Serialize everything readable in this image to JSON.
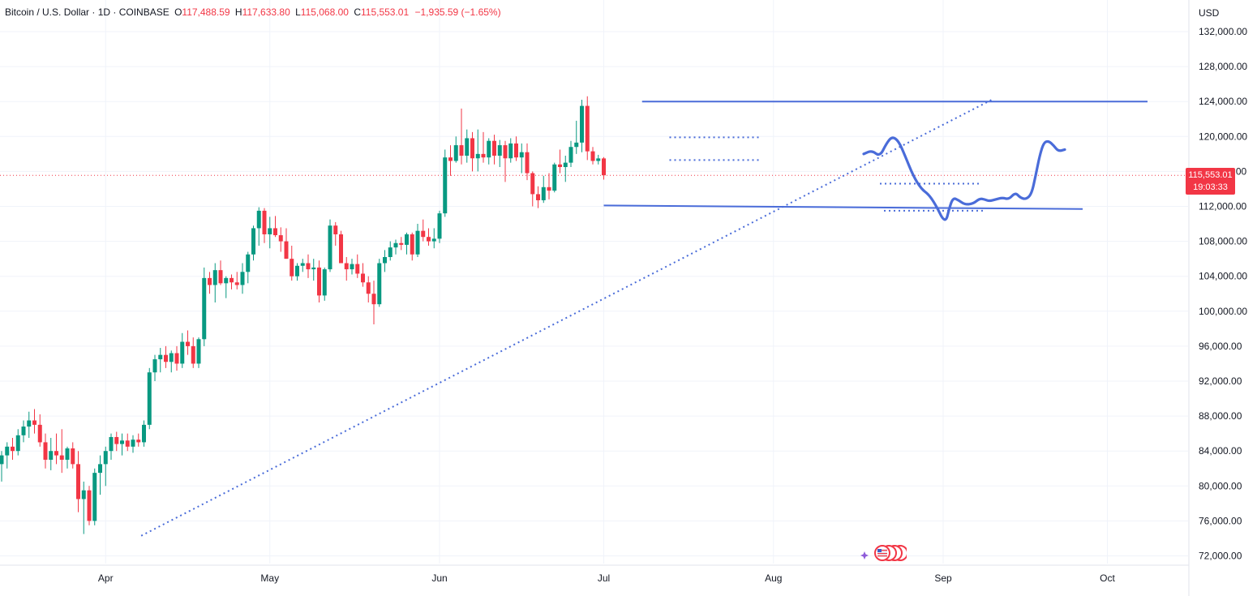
{
  "header": {
    "symbol": "Bitcoin / U.S. Dollar · 1D · COINBASE",
    "open_label": "O",
    "open": "117,488.59",
    "high_label": "H",
    "high": "117,633.80",
    "low_label": "L",
    "low": "115,068.00",
    "close_label": "C",
    "close": "115,553.01",
    "change": "−1,935.59 (−1.65%)"
  },
  "currency": "USD",
  "last_price": {
    "price": "115,553.01",
    "countdown": "19:03:33"
  },
  "colors": {
    "up": "#089981",
    "down": "#f23645",
    "drawing": "#4a6cd9",
    "grid": "#f0f3fa",
    "text": "#131722",
    "price_line": "#f23645"
  },
  "icons": [
    "star-icon",
    "us-flag-icon"
  ],
  "chart_data": {
    "type": "candlestick",
    "title": "Bitcoin / U.S. Dollar · 1D · COINBASE",
    "y_axis": {
      "ticks": [
        "132,000.00",
        "128,000.00",
        "124,000.00",
        "120,000.00",
        "116,000.00",
        "112,000.00",
        "108,000.00",
        "104,000.00",
        "100,000.00",
        "96,000.00",
        "92,000.00",
        "88,000.00",
        "84,000.00",
        "80,000.00",
        "76,000.00",
        "72,000.00"
      ],
      "range": [
        71000,
        133500
      ]
    },
    "x_axis": {
      "ticks": [
        "Apr",
        "May",
        "Jun",
        "Jul",
        "Aug",
        "Sep",
        "Oct"
      ]
    },
    "grid": true,
    "last_price": 115553.01,
    "ohlc": [
      [
        82500,
        84000,
        80500,
        83500
      ],
      [
        83500,
        85000,
        82000,
        84500
      ],
      [
        84500,
        85500,
        83000,
        84000
      ],
      [
        84000,
        86500,
        83500,
        85800
      ],
      [
        85800,
        87500,
        85000,
        86800
      ],
      [
        86800,
        88500,
        85500,
        87500
      ],
      [
        87500,
        88800,
        86000,
        87000
      ],
      [
        87000,
        88200,
        84500,
        85000
      ],
      [
        85000,
        86000,
        82000,
        83000
      ],
      [
        83000,
        85500,
        81800,
        84000
      ],
      [
        84000,
        86000,
        82500,
        83500
      ],
      [
        83500,
        86500,
        81500,
        83000
      ],
      [
        83000,
        84500,
        82000,
        84300
      ],
      [
        84300,
        85000,
        82000,
        82500
      ],
      [
        82500,
        84000,
        77000,
        78500
      ],
      [
        78500,
        80500,
        74500,
        79500
      ],
      [
        79500,
        80000,
        75500,
        76000
      ],
      [
        76000,
        82000,
        75500,
        81500
      ],
      [
        81500,
        83500,
        79000,
        82500
      ],
      [
        82500,
        84500,
        80000,
        84000
      ],
      [
        84000,
        86000,
        83000,
        85600
      ],
      [
        85600,
        86200,
        84000,
        84800
      ],
      [
        84800,
        86000,
        83500,
        85200
      ],
      [
        85200,
        86000,
        84000,
        84500
      ],
      [
        84500,
        85800,
        83800,
        85300
      ],
      [
        85300,
        86000,
        84500,
        85000
      ],
      [
        85000,
        87500,
        84500,
        87000
      ],
      [
        87000,
        93500,
        86500,
        93000
      ],
      [
        93000,
        95000,
        92000,
        94500
      ],
      [
        94500,
        95800,
        93000,
        95000
      ],
      [
        95000,
        96000,
        93500,
        94200
      ],
      [
        94200,
        95500,
        93000,
        95200
      ],
      [
        95200,
        96000,
        93200,
        94000
      ],
      [
        94000,
        97500,
        93500,
        96500
      ],
      [
        96500,
        97800,
        95000,
        96000
      ],
      [
        96000,
        97000,
        93500,
        94000
      ],
      [
        94000,
        97000,
        93500,
        96800
      ],
      [
        96800,
        105000,
        96000,
        103800
      ],
      [
        103800,
        104500,
        102000,
        103000
      ],
      [
        103000,
        105500,
        101000,
        104700
      ],
      [
        104700,
        105800,
        103000,
        103200
      ],
      [
        103200,
        104000,
        101500,
        103800
      ],
      [
        103800,
        104200,
        102500,
        103300
      ],
      [
        103300,
        104500,
        102500,
        103000
      ],
      [
        103000,
        105500,
        102000,
        104500
      ],
      [
        104500,
        106800,
        103200,
        106500
      ],
      [
        106500,
        109800,
        105800,
        109500
      ],
      [
        109500,
        111900,
        107500,
        111500
      ],
      [
        111500,
        111800,
        107800,
        108800
      ],
      [
        108800,
        110800,
        107200,
        109500
      ],
      [
        109500,
        110900,
        108500,
        108700
      ],
      [
        108700,
        109600,
        106800,
        108000
      ],
      [
        108000,
        109500,
        106000,
        106000
      ],
      [
        106000,
        107500,
        103500,
        104000
      ],
      [
        104000,
        105500,
        103500,
        105200
      ],
      [
        105200,
        106000,
        104500,
        105500
      ],
      [
        105500,
        106500,
        103800,
        104800
      ],
      [
        104800,
        106000,
        103500,
        105000
      ],
      [
        105000,
        105800,
        101000,
        101800
      ],
      [
        101800,
        105000,
        101200,
        104800
      ],
      [
        104800,
        110500,
        104500,
        109800
      ],
      [
        109800,
        110200,
        107500,
        108800
      ],
      [
        108800,
        109200,
        105500,
        105500
      ],
      [
        105500,
        106200,
        103500,
        104800
      ],
      [
        104800,
        106000,
        104200,
        105400
      ],
      [
        105400,
        106500,
        103800,
        104300
      ],
      [
        104300,
        105500,
        102800,
        103300
      ],
      [
        103300,
        104000,
        101000,
        102000
      ],
      [
        102000,
        103500,
        98500,
        100800
      ],
      [
        100800,
        106000,
        100500,
        105500
      ],
      [
        105500,
        107000,
        104500,
        106200
      ],
      [
        106200,
        108000,
        105800,
        107300
      ],
      [
        107300,
        108200,
        106500,
        107800
      ],
      [
        107800,
        108500,
        107000,
        107600
      ],
      [
        107600,
        109000,
        106500,
        108800
      ],
      [
        108800,
        109000,
        105800,
        106500
      ],
      [
        106500,
        110000,
        106200,
        109200
      ],
      [
        109200,
        110500,
        108000,
        108500
      ],
      [
        108500,
        109500,
        107500,
        108000
      ],
      [
        108000,
        109500,
        107200,
        108300
      ],
      [
        108300,
        111500,
        107800,
        111200
      ],
      [
        111200,
        118500,
        110800,
        117600
      ],
      [
        117600,
        119000,
        115500,
        117200
      ],
      [
        117200,
        120000,
        117000,
        119000
      ],
      [
        119000,
        123200,
        116800,
        117800
      ],
      [
        117800,
        120800,
        117000,
        119800
      ],
      [
        119800,
        120500,
        116000,
        117500
      ],
      [
        117500,
        120800,
        116000,
        118000
      ],
      [
        118000,
        120500,
        117000,
        117600
      ],
      [
        117600,
        119800,
        116800,
        119500
      ],
      [
        119500,
        120200,
        116800,
        117800
      ],
      [
        117800,
        119600,
        116500,
        119000
      ],
      [
        119000,
        119500,
        114800,
        117500
      ],
      [
        117500,
        119800,
        117000,
        119200
      ],
      [
        119200,
        120000,
        117200,
        117600
      ],
      [
        117600,
        119200,
        115800,
        118200
      ],
      [
        118200,
        119200,
        115000,
        115800
      ],
      [
        115800,
        116000,
        112000,
        113400
      ],
      [
        113400,
        114300,
        111800,
        112700
      ],
      [
        112700,
        115500,
        112400,
        114200
      ],
      [
        114200,
        115800,
        112800,
        113800
      ],
      [
        113800,
        117000,
        113600,
        116800
      ],
      [
        116800,
        118500,
        115800,
        116500
      ],
      [
        116500,
        117800,
        114800,
        117000
      ],
      [
        117000,
        119500,
        116500,
        118800
      ],
      [
        118800,
        121800,
        118000,
        119300
      ],
      [
        119300,
        124200,
        118200,
        123500
      ],
      [
        123500,
        124600,
        117300,
        118300
      ],
      [
        118300,
        118800,
        116800,
        117200
      ],
      [
        117200,
        117900,
        116800,
        117488
      ],
      [
        117488,
        117633,
        115068,
        115553
      ]
    ],
    "annotations": [
      {
        "type": "horizontal-line",
        "label": "resistance",
        "y": 124000
      },
      {
        "type": "horizontal-line",
        "label": "support",
        "y": 111800
      },
      {
        "type": "trendline",
        "style": "dotted",
        "from": [
          0,
          74500
        ],
        "to": [
          130,
          124000
        ]
      },
      {
        "type": "projection-path"
      }
    ]
  }
}
